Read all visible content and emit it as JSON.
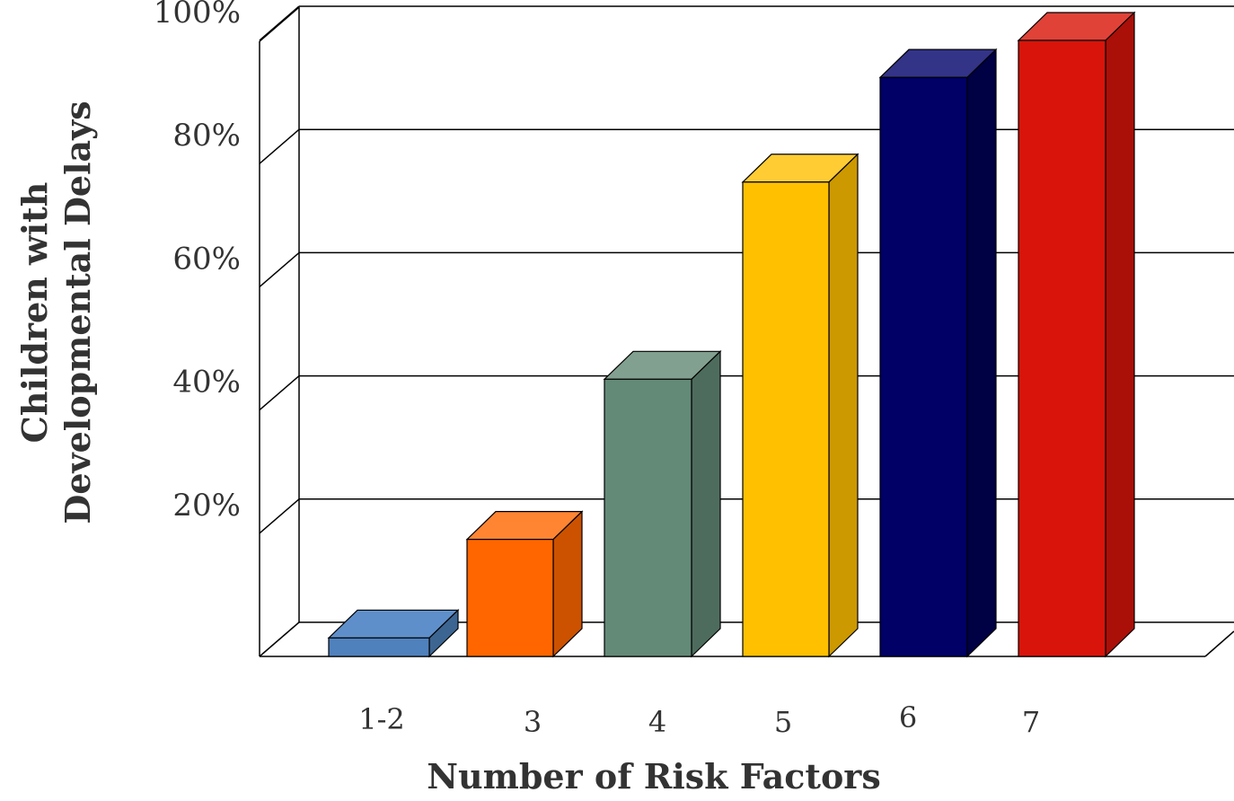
{
  "chart_data": {
    "type": "bar",
    "categories": [
      "1-2",
      "3",
      "4",
      "5",
      "6",
      "7"
    ],
    "values": [
      3,
      19,
      45,
      77,
      94,
      100
    ],
    "y_ticks": [
      "20%",
      "40%",
      "60%",
      "80%",
      "100%"
    ],
    "ylim": [
      0,
      100
    ],
    "xlabel": "Number of Risk Factors",
    "ylabel_lines": [
      "Children with",
      "Developmental Delays"
    ],
    "grid": true,
    "colors": [
      {
        "front": "#4f81bd",
        "top": "#5f8fca",
        "side": "#3d6591"
      },
      {
        "front": "#ff6600",
        "top": "#ff8533",
        "side": "#cc5200"
      },
      {
        "front": "#638a77",
        "top": "#82a090",
        "side": "#4e6c5d"
      },
      {
        "front": "#ffc000",
        "top": "#ffcc33",
        "side": "#cc9900"
      },
      {
        "front": "#000066",
        "top": "#333388",
        "side": "#000044"
      },
      {
        "front": "#d9140a",
        "top": "#e04238",
        "side": "#aa0f08"
      }
    ]
  }
}
